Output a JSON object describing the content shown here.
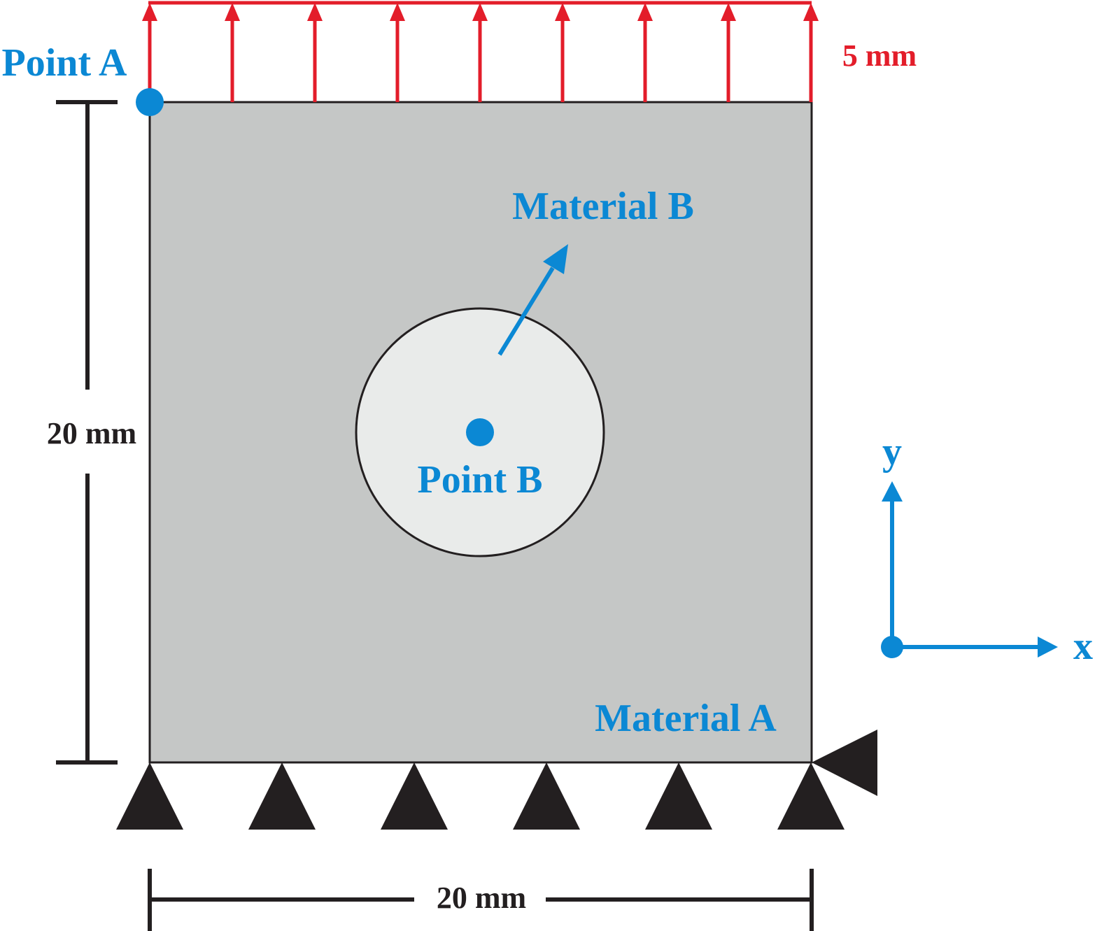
{
  "labels": {
    "point_a": "Point A",
    "point_b": "Point B",
    "material_a": "Material A",
    "material_b": "Material B",
    "displacement": "5 mm",
    "height_dim": "20 mm",
    "width_dim": "20 mm",
    "axis_x": "x",
    "axis_y": "y"
  },
  "colors": {
    "blue": "#0b88d4",
    "red": "#e31d2a",
    "plate": "#c5c7c6",
    "inclusion": "#e9ebea",
    "ink": "#231f20"
  }
}
